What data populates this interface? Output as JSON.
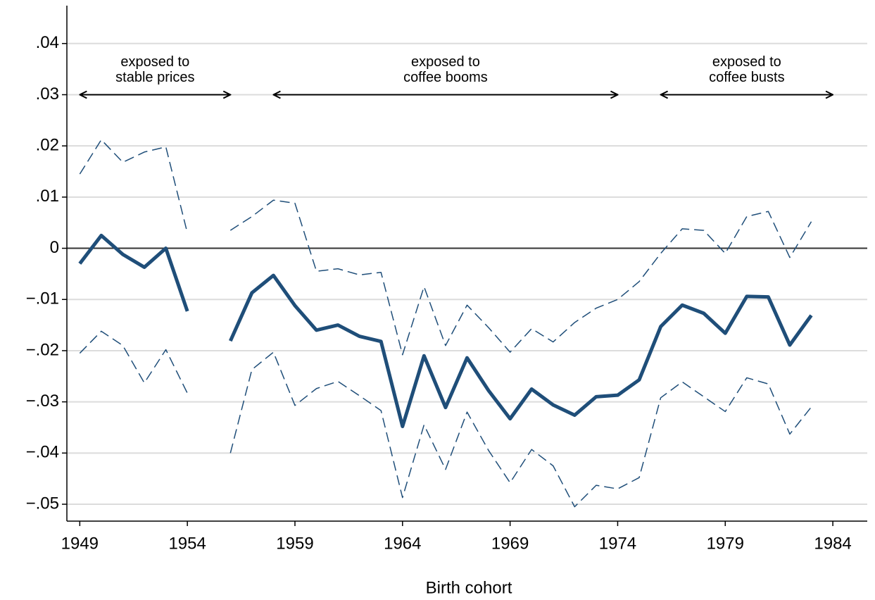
{
  "chart_data": {
    "type": "line",
    "x_label": "Birth cohort",
    "x": [
      1949,
      1950,
      1951,
      1952,
      1953,
      1954,
      1955,
      1956,
      1957,
      1958,
      1959,
      1960,
      1961,
      1962,
      1963,
      1964,
      1965,
      1966,
      1967,
      1968,
      1969,
      1970,
      1971,
      1972,
      1973,
      1974,
      1975,
      1976,
      1977,
      1978,
      1979,
      1980,
      1981,
      1982,
      1983
    ],
    "series": [
      {
        "color": "#1f4e79",
        "line_style": "dashed",
        "line_width": 1.5,
        "values": [
          0.0145,
          0.0212,
          0.0168,
          0.0188,
          0.0198,
          0.003,
          null,
          0.0035,
          0.0062,
          0.0094,
          0.0088,
          -0.0045,
          -0.004,
          -0.0052,
          -0.0047,
          -0.0208,
          -0.0075,
          -0.019,
          -0.0111,
          -0.0155,
          -0.0203,
          -0.0157,
          -0.0183,
          -0.0145,
          -0.0117,
          -0.01,
          -0.0065,
          -0.001,
          0.0038,
          0.0035,
          -0.001,
          0.0062,
          0.0072,
          -0.0018,
          0.0052
        ]
      },
      {
        "color": "#1f4e79",
        "line_style": "dashed",
        "line_width": 1.5,
        "values": [
          -0.0205,
          -0.0162,
          -0.019,
          -0.0263,
          -0.0198,
          -0.0283,
          null,
          -0.04,
          -0.0237,
          -0.0203,
          -0.0307,
          -0.0274,
          -0.026,
          -0.0288,
          -0.0317,
          -0.0487,
          -0.0345,
          -0.0432,
          -0.032,
          -0.0395,
          -0.0458,
          -0.0393,
          -0.0425,
          -0.0505,
          -0.0463,
          -0.047,
          -0.0448,
          -0.0292,
          -0.0261,
          -0.029,
          -0.0319,
          -0.0253,
          -0.0265,
          -0.0363,
          -0.031
        ]
      },
      {
        "color": "#1f4e79",
        "line_style": "solid",
        "line_width": 5,
        "values": [
          -0.003,
          0.0025,
          -0.0012,
          -0.0037,
          0.0,
          -0.0123,
          null,
          -0.0181,
          -0.0087,
          -0.0053,
          -0.0112,
          -0.016,
          -0.015,
          -0.0172,
          -0.0182,
          -0.0348,
          -0.021,
          -0.0311,
          -0.0214,
          -0.0278,
          -0.0333,
          -0.0275,
          -0.0306,
          -0.0326,
          -0.029,
          -0.0287,
          -0.0257,
          -0.0153,
          -0.0111,
          -0.0127,
          -0.0166,
          -0.0094,
          -0.0095,
          -0.0189,
          -0.0131
        ]
      }
    ],
    "xlim": [
      1948.4,
      1985.6
    ],
    "ylim": [
      -0.0533,
      0.0474
    ],
    "xticks": [
      1949,
      1954,
      1959,
      1964,
      1969,
      1974,
      1979,
      1984
    ],
    "yticks": [
      {
        "value": -0.05,
        "label": "−.05"
      },
      {
        "value": -0.04,
        "label": "−.04"
      },
      {
        "value": -0.03,
        "label": "−.03"
      },
      {
        "value": -0.02,
        "label": "−.02"
      },
      {
        "value": -0.01,
        "label": "−.01"
      },
      0,
      {
        "value": 0.01,
        "label": ".01"
      },
      {
        "value": 0.02,
        "label": ".02"
      },
      {
        "value": 0.03,
        "label": ".03"
      },
      {
        "value": 0.04,
        "label": ".04"
      }
    ],
    "grid": true,
    "reference_line": 0,
    "annotations": [
      {
        "lines": [
          "exposed to",
          "stable prices"
        ],
        "x_range": [
          1949,
          1956
        ],
        "y": 0.03
      },
      {
        "lines": [
          "exposed to",
          "coffee booms"
        ],
        "x_range": [
          1958,
          1974
        ],
        "y": 0.03
      },
      {
        "lines": [
          "exposed to",
          "coffee busts"
        ],
        "x_range": [
          1976,
          1984
        ],
        "y": 0.03
      }
    ]
  }
}
